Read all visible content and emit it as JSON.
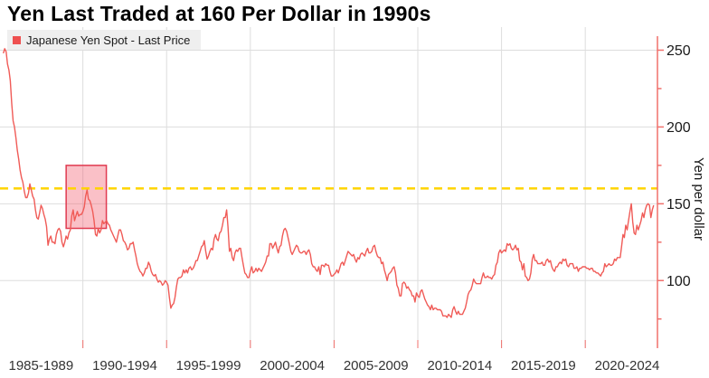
{
  "title": "Yen Last Traded at 160 Per Dollar in 1990s",
  "legend": {
    "label": "Japanese Yen Spot - Last Price"
  },
  "colors": {
    "series": "#F05B57",
    "legend_swatch": "#EE5050",
    "axis": "#F0706C",
    "reference_line": "#FFD400",
    "highlight_fill": "rgba(242,97,115,0.40)",
    "highlight_border": "#E03A50",
    "grid": "#DDDDDD",
    "legend_bg": "#EFEFEF",
    "text": "#1A1A1A"
  },
  "chart_data": {
    "type": "line",
    "title": "Yen Last Traded at 160 Per Dollar in 1990s",
    "ylabel": "Yen per dollar",
    "legend": [
      "Japanese Yen Spot - Last Price"
    ],
    "legend_position": "top-left",
    "grid": true,
    "xlim": [
      1985.05,
      2024.31
    ],
    "ylim": [
      56,
      265
    ],
    "x_tick_labels": [
      "1985-1989",
      "1990-1994",
      "1995-1999",
      "2000-2004",
      "2005-2009",
      "2010-2014",
      "2015-2019",
      "2020-2024"
    ],
    "x_tick_centers": [
      1987.5,
      1992.5,
      1997.5,
      2002.5,
      2007.5,
      2012.5,
      2017.5,
      2022.5
    ],
    "x_grid_years": [
      1990,
      1995,
      2000,
      2005,
      2010,
      2015,
      2020
    ],
    "y_major_ticks": [
      100,
      150,
      200,
      250
    ],
    "y_minor_ticks": [
      75,
      125,
      175,
      225
    ],
    "reference_line": {
      "value": 160,
      "style": "dashed"
    },
    "highlight_box": {
      "x0": 1989.0,
      "x1": 1991.4,
      "y0": 134,
      "y1": 175
    },
    "series": [
      {
        "name": "Japanese Yen Spot - Last Price",
        "start_year": 1985.25,
        "step_years": 0.0833333,
        "values": [
          248,
          251,
          249,
          241,
          237,
          230,
          215,
          204,
          200,
          193,
          185,
          179,
          172,
          167,
          164,
          158,
          154,
          154,
          157,
          163,
          159,
          155,
          153,
          146,
          141,
          140,
          144,
          149,
          147,
          143,
          140,
          135,
          123,
          127,
          129,
          125,
          125,
          124,
          130,
          133,
          134,
          132,
          125,
          122,
          125,
          129,
          127,
          131,
          133,
          142,
          146,
          139,
          142,
          145,
          142,
          143,
          143,
          145,
          148,
          155,
          159,
          153,
          152,
          149,
          145,
          139,
          130,
          129,
          134,
          131,
          133,
          139,
          137,
          138,
          139,
          137,
          136,
          133,
          131,
          129,
          127,
          125,
          129,
          133,
          133,
          130,
          126,
          125,
          123,
          120,
          121,
          124,
          124,
          125,
          120,
          116,
          111,
          108,
          106,
          105,
          103,
          105,
          108,
          108,
          112,
          110,
          106,
          104,
          103,
          104,
          101,
          99,
          100,
          99,
          97,
          98,
          100,
          99,
          97,
          89,
          82,
          84,
          85,
          89,
          96,
          101,
          102,
          102,
          103,
          107,
          105,
          107,
          105,
          108,
          109,
          107,
          108,
          110,
          113,
          113,
          116,
          119,
          122,
          123,
          126,
          119,
          114,
          116,
          119,
          121,
          120,
          127,
          130,
          127,
          126,
          131,
          132,
          136,
          141,
          141,
          146,
          135,
          119,
          121,
          115,
          113,
          118,
          120,
          119,
          121,
          121,
          115,
          110,
          105,
          104,
          102,
          102,
          106,
          109,
          105,
          106,
          108,
          106,
          108,
          107,
          106,
          108,
          110,
          112,
          116,
          116,
          124,
          124,
          121,
          123,
          125,
          121,
          118,
          122,
          123,
          129,
          133,
          134,
          132,
          128,
          124,
          119,
          117,
          119,
          121,
          123,
          122,
          119,
          118,
          118,
          119,
          119,
          117,
          119,
          120,
          117,
          111,
          109,
          109,
          107,
          106,
          109,
          104,
          110,
          110,
          109,
          111,
          110,
          110,
          106,
          103,
          103,
          104,
          105,
          107,
          105,
          108,
          111,
          112,
          110,
          113,
          116,
          119,
          118,
          117,
          116,
          117,
          114,
          112,
          115,
          114,
          117,
          118,
          117,
          116,
          119,
          121,
          118,
          118,
          119,
          122,
          123,
          119,
          116,
          115,
          115,
          111,
          112,
          107,
          104,
          100,
          104,
          105,
          106,
          108,
          109,
          105,
          97,
          95,
          90,
          90,
          98,
          99,
          98,
          95,
          96,
          94,
          93,
          90,
          90,
          86,
          92,
          90,
          89,
          93,
          94,
          91,
          88,
          86,
          84,
          83,
          81,
          84,
          81,
          82,
          82,
          81,
          81,
          81,
          80,
          77,
          77,
          77,
          76,
          78,
          77,
          76,
          81,
          83,
          80,
          78,
          80,
          78,
          78,
          78,
          80,
          82,
          86,
          91,
          93,
          94,
          97,
          101,
          99,
          98,
          98,
          98,
          98,
          102,
          105,
          102,
          102,
          103,
          102,
          102,
          101,
          103,
          104,
          110,
          112,
          118,
          120,
          118,
          119,
          120,
          119,
          124,
          123,
          124,
          121,
          120,
          121,
          123,
          120,
          121,
          113,
          112,
          107,
          111,
          103,
          102,
          100,
          101,
          105,
          114,
          117,
          113,
          113,
          111,
          111,
          111,
          112,
          110,
          110,
          113,
          114,
          112,
          113,
          109,
          107,
          106,
          109,
          109,
          111,
          112,
          111,
          114,
          113,
          114,
          110,
          109,
          111,
          111,
          111,
          108,
          108,
          109,
          106,
          108,
          108,
          109,
          109,
          109,
          108,
          108,
          107,
          108,
          108,
          106,
          106,
          105,
          105,
          104,
          103,
          105,
          106,
          111,
          109,
          110,
          111,
          110,
          110,
          111,
          114,
          113,
          115,
          115,
          115,
          122,
          130,
          128,
          136,
          133,
          139,
          145,
          150,
          138,
          131,
          130,
          136,
          133,
          136,
          139,
          144,
          141,
          146,
          149,
          150,
          149,
          141,
          146,
          149
        ]
      }
    ]
  }
}
